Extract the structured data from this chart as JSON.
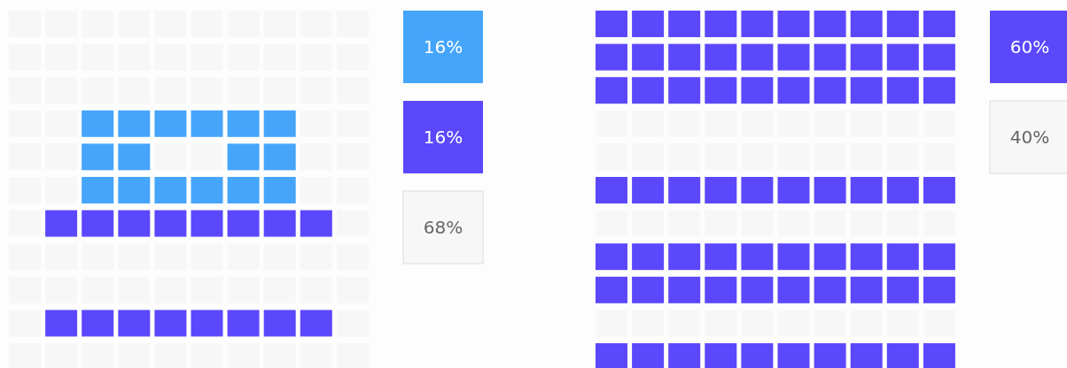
{
  "chart_data": [
    {
      "type": "other",
      "categories": [
        null,
        null,
        null
      ],
      "values": [
        16,
        16,
        68
      ],
      "value_labels": [
        "16%",
        "16%",
        "68%"
      ],
      "colors": [
        "#45a5fb",
        "#5b48fc",
        "#f7f7f7"
      ]
    },
    {
      "type": "other",
      "categories": [
        null,
        null
      ],
      "values": [
        60,
        40
      ],
      "value_labels": [
        "60%",
        "40%"
      ],
      "colors": [
        "#5b48fc",
        "#f7f7f7"
      ]
    }
  ]
}
